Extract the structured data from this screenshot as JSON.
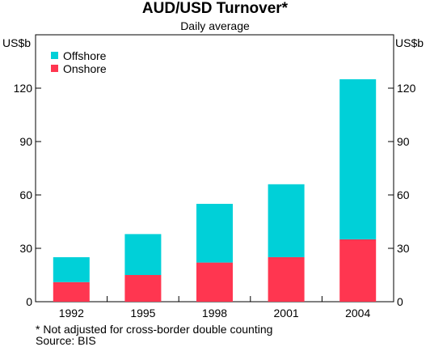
{
  "title": "AUD/USD Turnover*",
  "subtitle": "Daily average",
  "unit_left": "US$b",
  "unit_right": "US$b",
  "footnote": "*  Not adjusted for cross-border double counting",
  "source": "Source: BIS",
  "colors": {
    "Offshore": "#00d0d8",
    "Onshore": "#ff3650"
  },
  "chart_data": {
    "type": "bar",
    "stacked": true,
    "categories": [
      "1992",
      "1995",
      "1998",
      "2001",
      "2004"
    ],
    "series": [
      {
        "name": "Onshore",
        "values": [
          11,
          15,
          22,
          25,
          35
        ]
      },
      {
        "name": "Offshore",
        "values": [
          14,
          23,
          33,
          41,
          90
        ]
      }
    ],
    "ylim": [
      0,
      150
    ],
    "yticks": [
      0,
      30,
      60,
      90,
      120
    ],
    "ytick_labels": [
      "0",
      "30",
      "60",
      "90",
      "120"
    ],
    "legend": [
      {
        "name": "Offshore"
      },
      {
        "name": "Onshore"
      }
    ],
    "legend_position": "top-left",
    "grid": false,
    "right_axis": true
  }
}
